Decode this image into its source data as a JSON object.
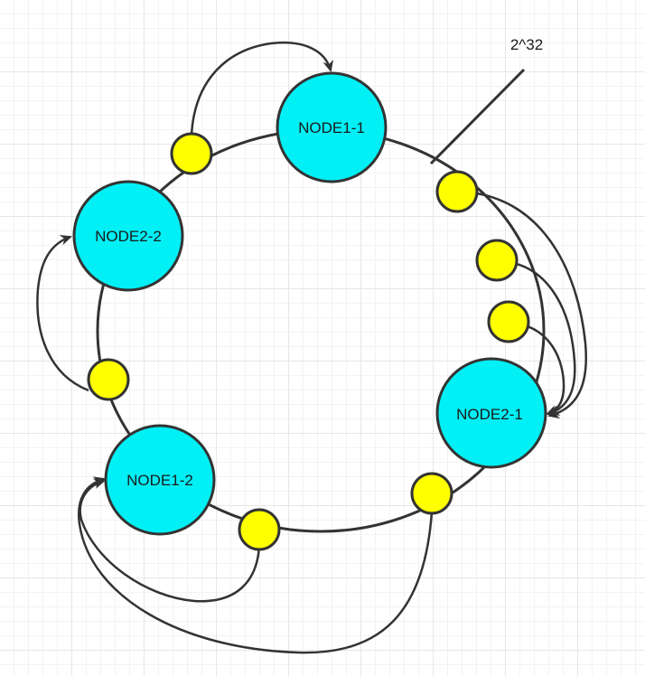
{
  "diagram": {
    "ring_marker_label": "2^32",
    "nodes": [
      {
        "id": "node1-1",
        "label": "NODE1-1"
      },
      {
        "id": "node2-2",
        "label": "NODE2-2"
      },
      {
        "id": "node2-1",
        "label": "NODE2-1"
      },
      {
        "id": "node1-2",
        "label": "NODE1-2"
      }
    ],
    "colors": {
      "node_fill": "#00f0f5",
      "key_point_fill": "#ffff00",
      "stroke": "#333333"
    }
  }
}
